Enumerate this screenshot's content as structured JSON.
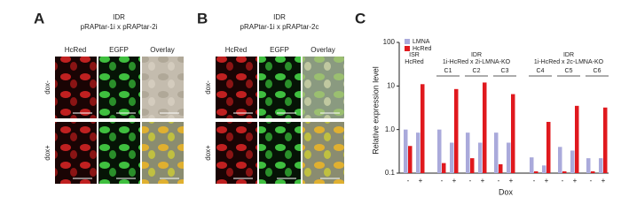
{
  "panel_a": {
    "letter": "A",
    "title": [
      "IDR",
      "pRAPtar-1i x pRAPtar-2i"
    ],
    "columns": [
      "HcRed",
      "EGFP",
      "Overlay"
    ],
    "rows": [
      "dox-",
      "dox+"
    ]
  },
  "panel_b": {
    "letter": "B",
    "title": [
      "IDR",
      "pRAPtar-1i x pRAPtar-2c"
    ],
    "columns": [
      "HcRed",
      "EGFP",
      "Overlay"
    ],
    "rows": [
      "dox-",
      "dox+"
    ]
  },
  "chart_data": {
    "type": "bar",
    "letter": "C",
    "y_label": "Relative expression level",
    "x_label": "Dox",
    "log_scale": true,
    "ylim": [
      0.1,
      100
    ],
    "yticks": [
      0.1,
      {
        "value": 1,
        "label": "1.0"
      },
      10,
      100
    ],
    "legend": "upper left",
    "categories": [
      "-",
      "+",
      "-",
      "+",
      "-",
      "+",
      "-",
      "+",
      "-",
      "+",
      "-",
      "+",
      "-",
      "+"
    ],
    "groups": [
      {
        "label": [
          "ISR",
          "HcRed"
        ]
      },
      {
        "label": [
          "IDR",
          "1i-HcRed x 2i-LMNA-KO"
        ],
        "clones": [
          "C1",
          "C2",
          "C3"
        ]
      },
      {
        "label": [
          "IDR",
          "1i-HcRed x 2c-LMNA-KO"
        ],
        "clones": [
          "C4",
          "C5",
          "C6"
        ]
      }
    ],
    "series": [
      {
        "name": "LMNA",
        "color": "#aaaadb",
        "values": [
          1.0,
          0.85,
          1.0,
          0.5,
          0.85,
          0.5,
          0.85,
          0.5,
          0.23,
          0.15,
          0.4,
          0.33,
          0.22,
          0.22
        ]
      },
      {
        "name": "HcRed",
        "color": "#e0191e",
        "values": [
          0.42,
          11,
          0.17,
          8.5,
          0.22,
          12,
          0.16,
          6.5,
          0.11,
          1.5,
          0.11,
          3.5,
          0.11,
          3.2
        ]
      }
    ]
  }
}
